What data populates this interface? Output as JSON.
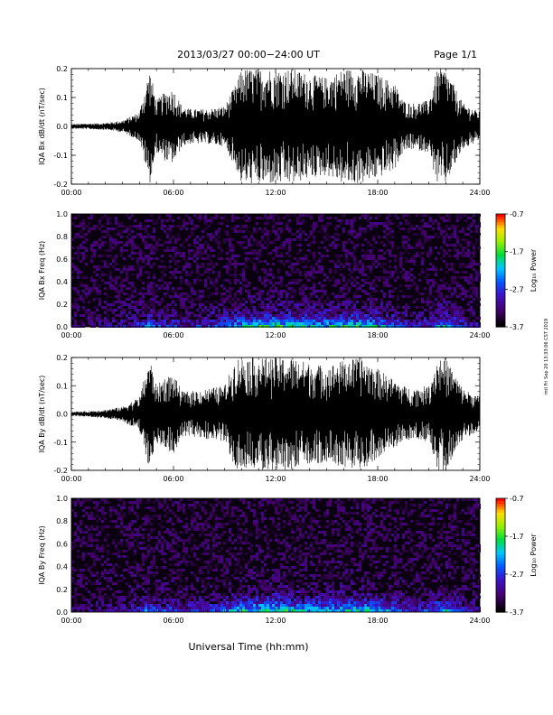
{
  "header": {
    "date_range": "2013/03/27  00:00−24:00 UT",
    "page": "Page 1/1"
  },
  "footer": {
    "xlabel": "Universal Time (hh:mm)"
  },
  "side_stamp": "mtl Fri Sep 20 13:33:06 CST 2019",
  "colorbar": {
    "label": "Log₁₀ Power",
    "ticks": [
      "-0.7",
      "-1.7",
      "-2.7",
      "-3.7"
    ],
    "range": [
      -3.7,
      -0.7
    ]
  },
  "chart_data": [
    {
      "type": "line",
      "ylabel": "IQA Bx dB/dt (nT/sec)",
      "xlim": [
        0,
        24
      ],
      "ylim": [
        -0.2,
        0.2
      ],
      "x_ticks": [
        "00:00",
        "06:00",
        "12:00",
        "18:00",
        "24:00"
      ],
      "y_ticks": [
        "0.2",
        "0.1",
        "0.0",
        "-0.1",
        "-0.2"
      ],
      "x": [
        0,
        1,
        2,
        3,
        4,
        4.6,
        5,
        5.5,
        6,
        6.5,
        7,
        8,
        9,
        9.7,
        10,
        11,
        12,
        13,
        14,
        15,
        16,
        17,
        18,
        19,
        19.5,
        20,
        21,
        21.5,
        22,
        23,
        24
      ],
      "amplitude": [
        0.008,
        0.01,
        0.012,
        0.02,
        0.05,
        0.2,
        0.09,
        0.12,
        0.13,
        0.07,
        0.06,
        0.06,
        0.07,
        0.15,
        0.2,
        0.2,
        0.2,
        0.2,
        0.18,
        0.17,
        0.2,
        0.2,
        0.18,
        0.15,
        0.09,
        0.08,
        0.09,
        0.2,
        0.2,
        0.08,
        0.05
      ]
    },
    {
      "type": "heatmap",
      "ylabel": "IQA Bx Freq (Hz)",
      "xlim": [
        0,
        24
      ],
      "ylim": [
        0.0,
        1.0
      ],
      "x_ticks": [
        "00:00",
        "06:00",
        "12:00",
        "18:00",
        "24:00"
      ],
      "y_ticks": [
        "1.0",
        "0.8",
        "0.6",
        "0.4",
        "0.2",
        "0.0"
      ],
      "x": [
        0,
        1,
        2,
        3,
        4,
        4.6,
        5,
        5.5,
        6,
        6.5,
        7,
        8,
        9,
        9.7,
        10,
        11,
        12,
        13,
        14,
        15,
        16,
        17,
        18,
        19,
        19.5,
        20,
        21,
        21.5,
        22,
        23,
        24
      ],
      "low_freq_log_power": [
        -3.4,
        -3.3,
        -3.2,
        -3.1,
        -2.8,
        -2.4,
        -2.7,
        -2.8,
        -2.7,
        -2.9,
        -2.9,
        -2.8,
        -2.5,
        -2.2,
        -2.0,
        -1.8,
        -1.7,
        -1.9,
        -2.0,
        -2.1,
        -1.9,
        -1.8,
        -2.1,
        -2.4,
        -2.8,
        -2.9,
        -2.8,
        -2.2,
        -2.1,
        -2.9,
        -3.1
      ],
      "background_log_power": -3.6
    },
    {
      "type": "line",
      "ylabel": "IQA By dB/dt (nT/sec)",
      "xlim": [
        0,
        24
      ],
      "ylim": [
        -0.2,
        0.2
      ],
      "x_ticks": [
        "00:00",
        "06:00",
        "12:00",
        "18:00",
        "24:00"
      ],
      "y_ticks": [
        "0.2",
        "0.1",
        "0.0",
        "-0.1",
        "-0.2"
      ],
      "x": [
        0,
        1,
        2,
        3,
        4,
        4.6,
        5,
        5.5,
        6,
        6.5,
        7,
        8,
        9,
        9.7,
        10,
        11,
        12,
        13,
        14,
        15,
        16,
        17,
        18,
        19,
        19.5,
        20,
        21,
        21.5,
        22,
        23,
        24
      ],
      "amplitude": [
        0.008,
        0.01,
        0.015,
        0.025,
        0.06,
        0.2,
        0.1,
        0.13,
        0.14,
        0.08,
        0.08,
        0.09,
        0.1,
        0.2,
        0.2,
        0.2,
        0.2,
        0.2,
        0.18,
        0.17,
        0.19,
        0.2,
        0.16,
        0.12,
        0.1,
        0.09,
        0.1,
        0.2,
        0.2,
        0.09,
        0.06
      ]
    },
    {
      "type": "heatmap",
      "ylabel": "IQA By Freq (Hz)",
      "xlim": [
        0,
        24
      ],
      "ylim": [
        0.0,
        1.0
      ],
      "x_ticks": [
        "00:00",
        "06:00",
        "12:00",
        "18:00",
        "24:00"
      ],
      "y_ticks": [
        "1.0",
        "0.8",
        "0.6",
        "0.4",
        "0.2",
        "0.0"
      ],
      "x": [
        0,
        1,
        2,
        3,
        4,
        4.6,
        5,
        5.5,
        6,
        6.5,
        7,
        8,
        9,
        9.7,
        10,
        11,
        12,
        13,
        14,
        15,
        16,
        17,
        18,
        19,
        19.5,
        20,
        21,
        21.5,
        22,
        23,
        24
      ],
      "low_freq_log_power": [
        -3.3,
        -3.2,
        -3.1,
        -3.0,
        -2.7,
        -2.3,
        -2.6,
        -2.7,
        -2.6,
        -2.8,
        -2.8,
        -2.7,
        -2.4,
        -2.1,
        -1.9,
        -1.7,
        -1.6,
        -1.8,
        -1.9,
        -2.0,
        -1.8,
        -1.7,
        -2.0,
        -2.3,
        -2.7,
        -2.8,
        -2.7,
        -2.1,
        -2.0,
        -2.8,
        -3.0
      ],
      "background_log_power": -3.6
    }
  ]
}
